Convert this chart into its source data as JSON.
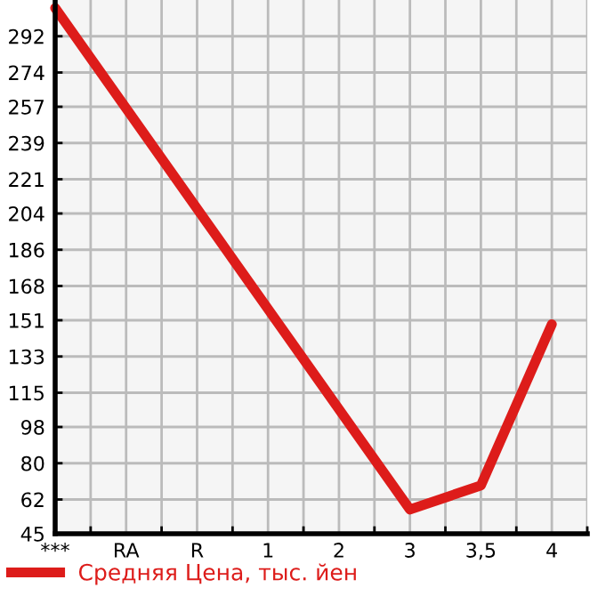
{
  "chart_data": {
    "type": "line",
    "categories": [
      "***",
      "RA",
      "R",
      "1",
      "2",
      "3",
      "3,5",
      "4"
    ],
    "series": [
      {
        "name": "Средняя Цена, тыс. йен",
        "color": "#dd1c1a",
        "values": [
          306,
          null,
          null,
          null,
          null,
          57,
          69,
          149
        ]
      }
    ],
    "ylim": [
      45,
      310
    ],
    "yticks": [
      45,
      62,
      80,
      98,
      115,
      133,
      151,
      168,
      186,
      204,
      221,
      239,
      257,
      274,
      292
    ],
    "grid": true,
    "legend": "bottom left",
    "marker": "none",
    "line_style": "solid"
  }
}
